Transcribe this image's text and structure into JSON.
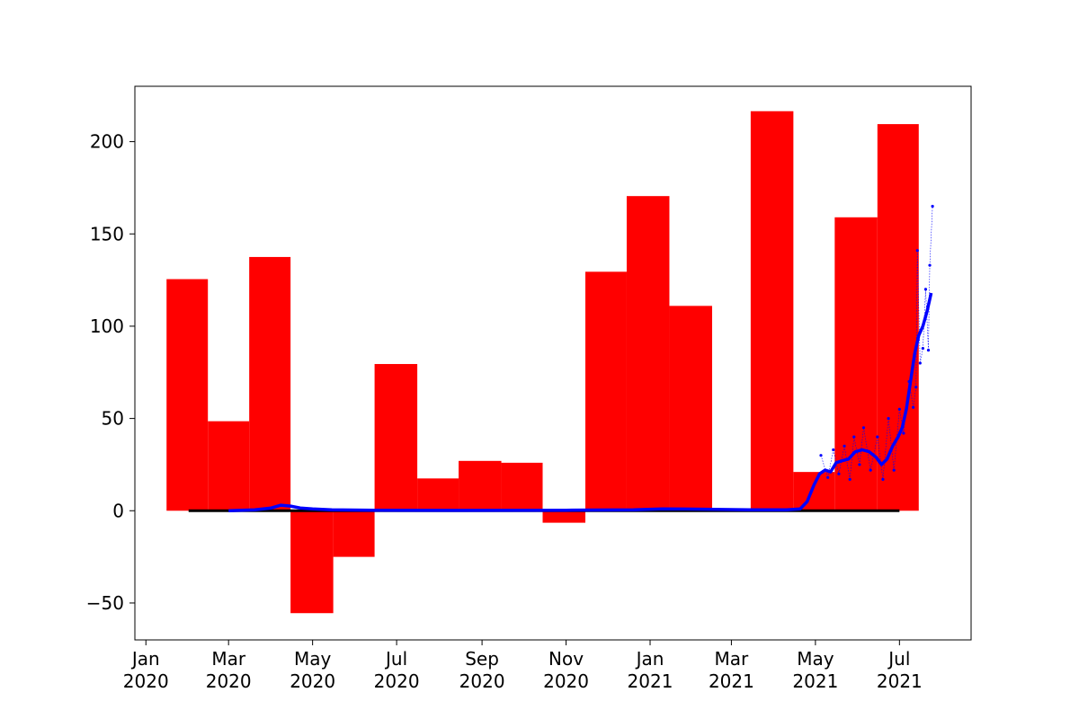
{
  "chart_data": {
    "type": "bar",
    "title": "",
    "xlabel": "",
    "ylabel": "",
    "grid": false,
    "legend": "none",
    "xlim": [
      "2019-12-24",
      "2021-08-22"
    ],
    "ylim": [
      -70,
      230
    ],
    "colors": {
      "bars": "#ff0000",
      "line": "#0000ff",
      "baseline": "#000000"
    },
    "y_ticks": [
      {
        "value": -50,
        "label": "−50"
      },
      {
        "value": 0,
        "label": "0"
      },
      {
        "value": 50,
        "label": "50"
      },
      {
        "value": 100,
        "label": "100"
      },
      {
        "value": 150,
        "label": "150"
      },
      {
        "value": 200,
        "label": "200"
      }
    ],
    "x_ticks": [
      {
        "date": "2020-01-01",
        "month": "Jan",
        "year": "2020"
      },
      {
        "date": "2020-03-01",
        "month": "Mar",
        "year": "2020"
      },
      {
        "date": "2020-05-01",
        "month": "May",
        "year": "2020"
      },
      {
        "date": "2020-07-01",
        "month": "Jul",
        "year": "2020"
      },
      {
        "date": "2020-09-01",
        "month": "Sep",
        "year": "2020"
      },
      {
        "date": "2020-11-01",
        "month": "Nov",
        "year": "2020"
      },
      {
        "date": "2021-01-01",
        "month": "Jan",
        "year": "2021"
      },
      {
        "date": "2021-03-01",
        "month": "Mar",
        "year": "2021"
      },
      {
        "date": "2021-05-01",
        "month": "May",
        "year": "2021"
      },
      {
        "date": "2021-07-01",
        "month": "Jul",
        "year": "2021"
      }
    ],
    "bars": [
      {
        "start": "2020-01-16",
        "end": "2020-02-15",
        "value": 125.5
      },
      {
        "start": "2020-02-15",
        "end": "2020-03-16",
        "value": 48.5
      },
      {
        "start": "2020-03-16",
        "end": "2020-04-15",
        "value": 137.5
      },
      {
        "start": "2020-04-15",
        "end": "2020-05-16",
        "value": -55.5
      },
      {
        "start": "2020-05-16",
        "end": "2020-06-15",
        "value": -25
      },
      {
        "start": "2020-06-15",
        "end": "2020-07-16",
        "value": 79.5
      },
      {
        "start": "2020-07-16",
        "end": "2020-08-15",
        "value": 17.5
      },
      {
        "start": "2020-08-15",
        "end": "2020-09-15",
        "value": 27
      },
      {
        "start": "2020-09-15",
        "end": "2020-10-15",
        "value": 26
      },
      {
        "start": "2020-10-15",
        "end": "2020-11-15",
        "value": -6.5
      },
      {
        "start": "2020-11-15",
        "end": "2020-12-15",
        "value": 129.5
      },
      {
        "start": "2020-12-15",
        "end": "2021-01-15",
        "value": 170.5
      },
      {
        "start": "2021-01-15",
        "end": "2021-02-15",
        "value": 111
      },
      {
        "start": "2021-02-15",
        "end": "2021-03-15",
        "value": 0
      },
      {
        "start": "2021-03-15",
        "end": "2021-04-15",
        "value": 216.5
      },
      {
        "start": "2021-04-15",
        "end": "2021-05-15",
        "value": 21
      },
      {
        "start": "2021-05-15",
        "end": "2021-06-15",
        "value": 159
      },
      {
        "start": "2021-06-15",
        "end": "2021-07-15",
        "value": 209.5
      }
    ],
    "baseline": {
      "start": "2020-02-01",
      "end": "2021-07-01",
      "value": 0
    },
    "series": [
      {
        "points": [
          [
            "2020-03-01",
            0
          ],
          [
            "2020-03-20",
            0.5
          ],
          [
            "2020-04-01",
            1.5
          ],
          [
            "2020-04-08",
            3
          ],
          [
            "2020-04-15",
            2.5
          ],
          [
            "2020-04-22",
            1.5
          ],
          [
            "2020-05-01",
            1
          ],
          [
            "2020-05-15",
            0.5
          ],
          [
            "2020-06-15",
            0.3
          ],
          [
            "2020-08-15",
            0.2
          ],
          [
            "2020-11-01",
            0.3
          ],
          [
            "2020-12-20",
            0.5
          ],
          [
            "2021-01-10",
            1
          ],
          [
            "2021-02-10",
            0.8
          ],
          [
            "2021-03-15",
            0.5
          ],
          [
            "2021-04-10",
            0.5
          ],
          [
            "2021-04-20",
            1
          ],
          [
            "2021-04-25",
            5
          ],
          [
            "2021-04-30",
            14
          ],
          [
            "2021-05-04",
            20
          ],
          [
            "2021-05-08",
            22
          ],
          [
            "2021-05-12",
            21
          ],
          [
            "2021-05-16",
            26
          ],
          [
            "2021-05-20",
            27
          ],
          [
            "2021-05-25",
            28
          ],
          [
            "2021-05-30",
            32
          ],
          [
            "2021-06-04",
            33
          ],
          [
            "2021-06-09",
            32
          ],
          [
            "2021-06-14",
            29
          ],
          [
            "2021-06-18",
            25
          ],
          [
            "2021-06-22",
            28
          ],
          [
            "2021-06-26",
            35
          ],
          [
            "2021-06-30",
            40
          ],
          [
            "2021-07-03",
            45
          ],
          [
            "2021-07-06",
            55
          ],
          [
            "2021-07-09",
            70
          ],
          [
            "2021-07-12",
            85
          ],
          [
            "2021-07-15",
            95
          ],
          [
            "2021-07-18",
            100
          ],
          [
            "2021-07-21",
            108
          ],
          [
            "2021-07-24",
            118
          ]
        ]
      }
    ],
    "daily_markers": [
      [
        "2021-05-05",
        30
      ],
      [
        "2021-05-10",
        18
      ],
      [
        "2021-05-14",
        33
      ],
      [
        "2021-05-18",
        20
      ],
      [
        "2021-05-22",
        35
      ],
      [
        "2021-05-26",
        17
      ],
      [
        "2021-05-29",
        40
      ],
      [
        "2021-06-02",
        25
      ],
      [
        "2021-06-05",
        45
      ],
      [
        "2021-06-10",
        22
      ],
      [
        "2021-06-15",
        40
      ],
      [
        "2021-06-19",
        17
      ],
      [
        "2021-06-23",
        50
      ],
      [
        "2021-06-27",
        22
      ],
      [
        "2021-07-01",
        55
      ],
      [
        "2021-07-04",
        42
      ],
      [
        "2021-07-08",
        70
      ],
      [
        "2021-07-11",
        56
      ],
      [
        "2021-07-13",
        67
      ],
      [
        "2021-07-14",
        141
      ],
      [
        "2021-07-16",
        80
      ],
      [
        "2021-07-18",
        88
      ],
      [
        "2021-07-20",
        120
      ],
      [
        "2021-07-22",
        87
      ],
      [
        "2021-07-23",
        133
      ],
      [
        "2021-07-25",
        165
      ]
    ]
  }
}
